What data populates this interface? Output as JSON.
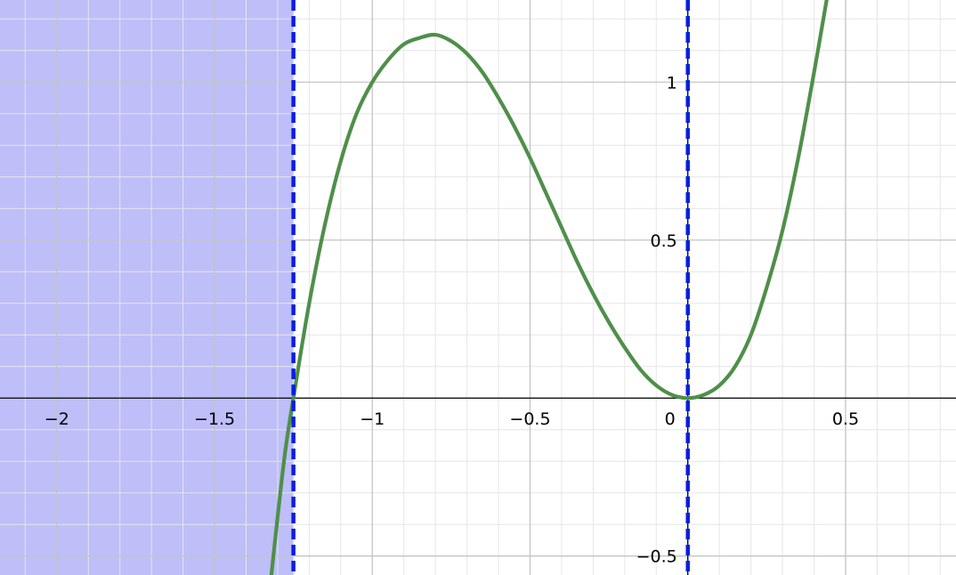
{
  "chart_data": {
    "type": "line",
    "title": "",
    "xlabel": "",
    "ylabel": "",
    "xlim": [
      -2.18,
      0.85
    ],
    "ylim": [
      -0.56,
      1.26
    ],
    "grid": true,
    "x_ticks": [
      {
        "value": -2,
        "label": "−2"
      },
      {
        "value": -1.5,
        "label": "−1.5"
      },
      {
        "value": -1,
        "label": "−1"
      },
      {
        "value": -0.5,
        "label": "−0.5"
      },
      {
        "value": 0,
        "label": "0"
      },
      {
        "value": 0.5,
        "label": "0.5"
      }
    ],
    "y_ticks": [
      {
        "value": 1,
        "label": "1"
      },
      {
        "value": 0.5,
        "label": "0.5"
      },
      {
        "value": -0.5,
        "label": "−0.5"
      }
    ],
    "series": [
      {
        "color": "#4f8f4a",
        "points": [
          [
            -1.32,
            -0.56
          ],
          [
            -1.28,
            -0.2
          ],
          [
            -1.25,
            0
          ],
          [
            -1.2,
            0.3
          ],
          [
            -1.15,
            0.55
          ],
          [
            -1.1,
            0.75
          ],
          [
            -1.05,
            0.9
          ],
          [
            -1.0,
            1.0
          ],
          [
            -0.95,
            1.07
          ],
          [
            -0.9,
            1.12
          ],
          [
            -0.85,
            1.14
          ],
          [
            -0.8,
            1.15
          ],
          [
            -0.75,
            1.13
          ],
          [
            -0.7,
            1.09
          ],
          [
            -0.65,
            1.03
          ],
          [
            -0.6,
            0.95
          ],
          [
            -0.55,
            0.86
          ],
          [
            -0.5,
            0.76
          ],
          [
            -0.45,
            0.65
          ],
          [
            -0.4,
            0.54
          ],
          [
            -0.35,
            0.43
          ],
          [
            -0.3,
            0.33
          ],
          [
            -0.25,
            0.24
          ],
          [
            -0.2,
            0.16
          ],
          [
            -0.15,
            0.09
          ],
          [
            -0.1,
            0.04
          ],
          [
            -0.05,
            0.01
          ],
          [
            0.0,
            0.0
          ],
          [
            0.05,
            0.01
          ],
          [
            0.1,
            0.04
          ],
          [
            0.15,
            0.1
          ],
          [
            0.2,
            0.2
          ],
          [
            0.25,
            0.35
          ],
          [
            0.3,
            0.53
          ],
          [
            0.35,
            0.76
          ],
          [
            0.4,
            1.03
          ],
          [
            0.44,
            1.26
          ]
        ]
      }
    ],
    "vertical_lines": [
      {
        "x": -1.25,
        "style": "dashed",
        "color": "#0a1ee0"
      },
      {
        "x": 0.0,
        "style": "dashed",
        "color": "#0a1ee0"
      }
    ],
    "shaded_region": {
      "x_from": -2.18,
      "x_to": -1.25,
      "color": "#8f8ff5"
    }
  }
}
